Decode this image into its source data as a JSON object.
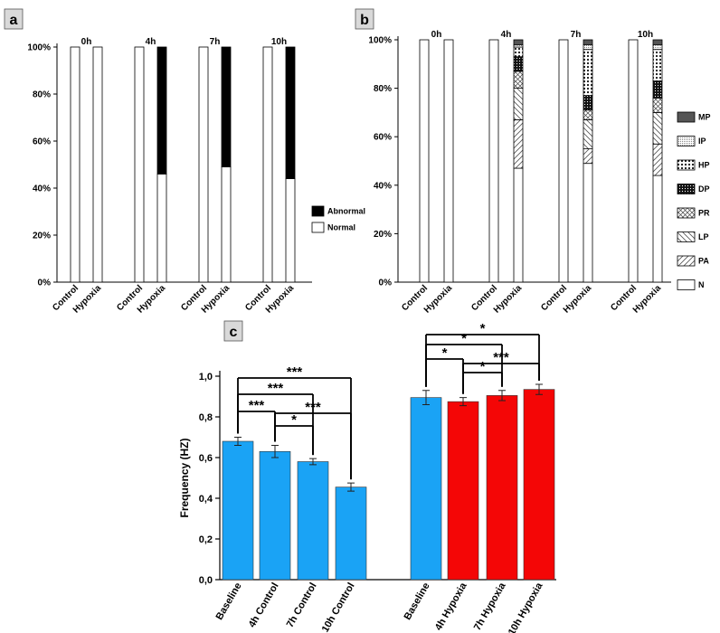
{
  "panels": {
    "a": "a",
    "b": "b",
    "c": "c"
  },
  "chart_data": [
    {
      "id": "a",
      "type": "bar",
      "stacked": true,
      "ylim": [
        0,
        100
      ],
      "ytick_labels": [
        "0%",
        "20%",
        "40%",
        "60%",
        "80%",
        "100%"
      ],
      "groups": [
        "0h",
        "4h",
        "7h",
        "10h"
      ],
      "categories": [
        "Control",
        "Hypoxia"
      ],
      "series_order": [
        "Normal",
        "Abnormal"
      ],
      "legend": [
        "Abnormal",
        "Normal"
      ],
      "legend_position": "right",
      "colors": {
        "Normal": "#ffffff",
        "Abnormal": "#000000"
      },
      "bars": [
        {
          "group": "0h",
          "category": "Control",
          "Normal": 100,
          "Abnormal": 0
        },
        {
          "group": "0h",
          "category": "Hypoxia",
          "Normal": 100,
          "Abnormal": 0
        },
        {
          "group": "4h",
          "category": "Control",
          "Normal": 100,
          "Abnormal": 0
        },
        {
          "group": "4h",
          "category": "Hypoxia",
          "Normal": 46,
          "Abnormal": 54
        },
        {
          "group": "7h",
          "category": "Control",
          "Normal": 100,
          "Abnormal": 0
        },
        {
          "group": "7h",
          "category": "Hypoxia",
          "Normal": 49,
          "Abnormal": 51
        },
        {
          "group": "10h",
          "category": "Control",
          "Normal": 100,
          "Abnormal": 0
        },
        {
          "group": "10h",
          "category": "Hypoxia",
          "Normal": 44,
          "Abnormal": 56
        }
      ]
    },
    {
      "id": "b",
      "type": "bar",
      "stacked": true,
      "ylim": [
        0,
        100
      ],
      "ytick_labels": [
        "0%",
        "20%",
        "40%",
        "60%",
        "80%",
        "100%"
      ],
      "groups": [
        "0h",
        "4h",
        "7h",
        "10h"
      ],
      "categories": [
        "Control",
        "Hypoxia"
      ],
      "series_order": [
        "N",
        "PA",
        "LP",
        "PR",
        "DP",
        "HP",
        "IP",
        "MP"
      ],
      "legend": [
        "MP",
        "IP",
        "HP",
        "DP",
        "PR",
        "LP",
        "PA",
        "N"
      ],
      "legend_position": "right",
      "patterns": {
        "N": "white",
        "PA": "diag",
        "LP": "antidiag",
        "PR": "cross",
        "DP": "dots-dark",
        "HP": "dots-light",
        "IP": "dense",
        "MP": "gray"
      },
      "bars": [
        {
          "group": "0h",
          "category": "Control",
          "N": 100
        },
        {
          "group": "0h",
          "category": "Hypoxia",
          "N": 100
        },
        {
          "group": "4h",
          "category": "Control",
          "N": 100
        },
        {
          "group": "4h",
          "category": "Hypoxia",
          "N": 47,
          "PA": 20,
          "LP": 13,
          "PR": 7,
          "DP": 6,
          "HP": 4,
          "IP": 1,
          "MP": 2
        },
        {
          "group": "7h",
          "category": "Control",
          "N": 100
        },
        {
          "group": "7h",
          "category": "Hypoxia",
          "N": 49,
          "PA": 6,
          "LP": 12,
          "PR": 4,
          "DP": 6,
          "HP": 19,
          "IP": 2,
          "MP": 2
        },
        {
          "group": "10h",
          "category": "Control",
          "N": 100
        },
        {
          "group": "10h",
          "category": "Hypoxia",
          "N": 44,
          "PA": 13,
          "LP": 13,
          "PR": 6,
          "DP": 7,
          "HP": 13,
          "IP": 2,
          "MP": 2
        }
      ]
    },
    {
      "id": "c",
      "type": "bar",
      "ylabel": "Frequency (HZ)",
      "ylim": [
        0,
        1.0
      ],
      "ytick_labels": [
        "0,0",
        "0,2",
        "0,4",
        "0,6",
        "0,8",
        "1,0"
      ],
      "categories": [
        "Baseline",
        "4h Control",
        "7h Control",
        "10h Control",
        "Baseline",
        "4h Hypoxia",
        "7h Hypoxia",
        "10h Hypoxia"
      ],
      "values": [
        0.68,
        0.63,
        0.58,
        0.455,
        0.895,
        0.875,
        0.905,
        0.935
      ],
      "errors": [
        0.02,
        0.03,
        0.015,
        0.02,
        0.035,
        0.02,
        0.025,
        0.025
      ],
      "colors": [
        "#1aa3f5",
        "#1aa3f5",
        "#1aa3f5",
        "#1aa3f5",
        "#1aa3f5",
        "#f40606",
        "#f40606",
        "#f40606"
      ],
      "significance": [
        {
          "from": 0,
          "to": 1,
          "label": "***"
        },
        {
          "from": 0,
          "to": 2,
          "label": "***"
        },
        {
          "from": 0,
          "to": 3,
          "label": "***"
        },
        {
          "from": 1,
          "to": 2,
          "label": "*"
        },
        {
          "from": 1,
          "to": 3,
          "label": "***"
        },
        {
          "from": 4,
          "to": 5,
          "label": "*"
        },
        {
          "from": 4,
          "to": 6,
          "label": "*"
        },
        {
          "from": 4,
          "to": 7,
          "label": "*"
        },
        {
          "from": 5,
          "to": 6,
          "label": "*"
        },
        {
          "from": 5,
          "to": 7,
          "label": "***"
        }
      ]
    }
  ]
}
